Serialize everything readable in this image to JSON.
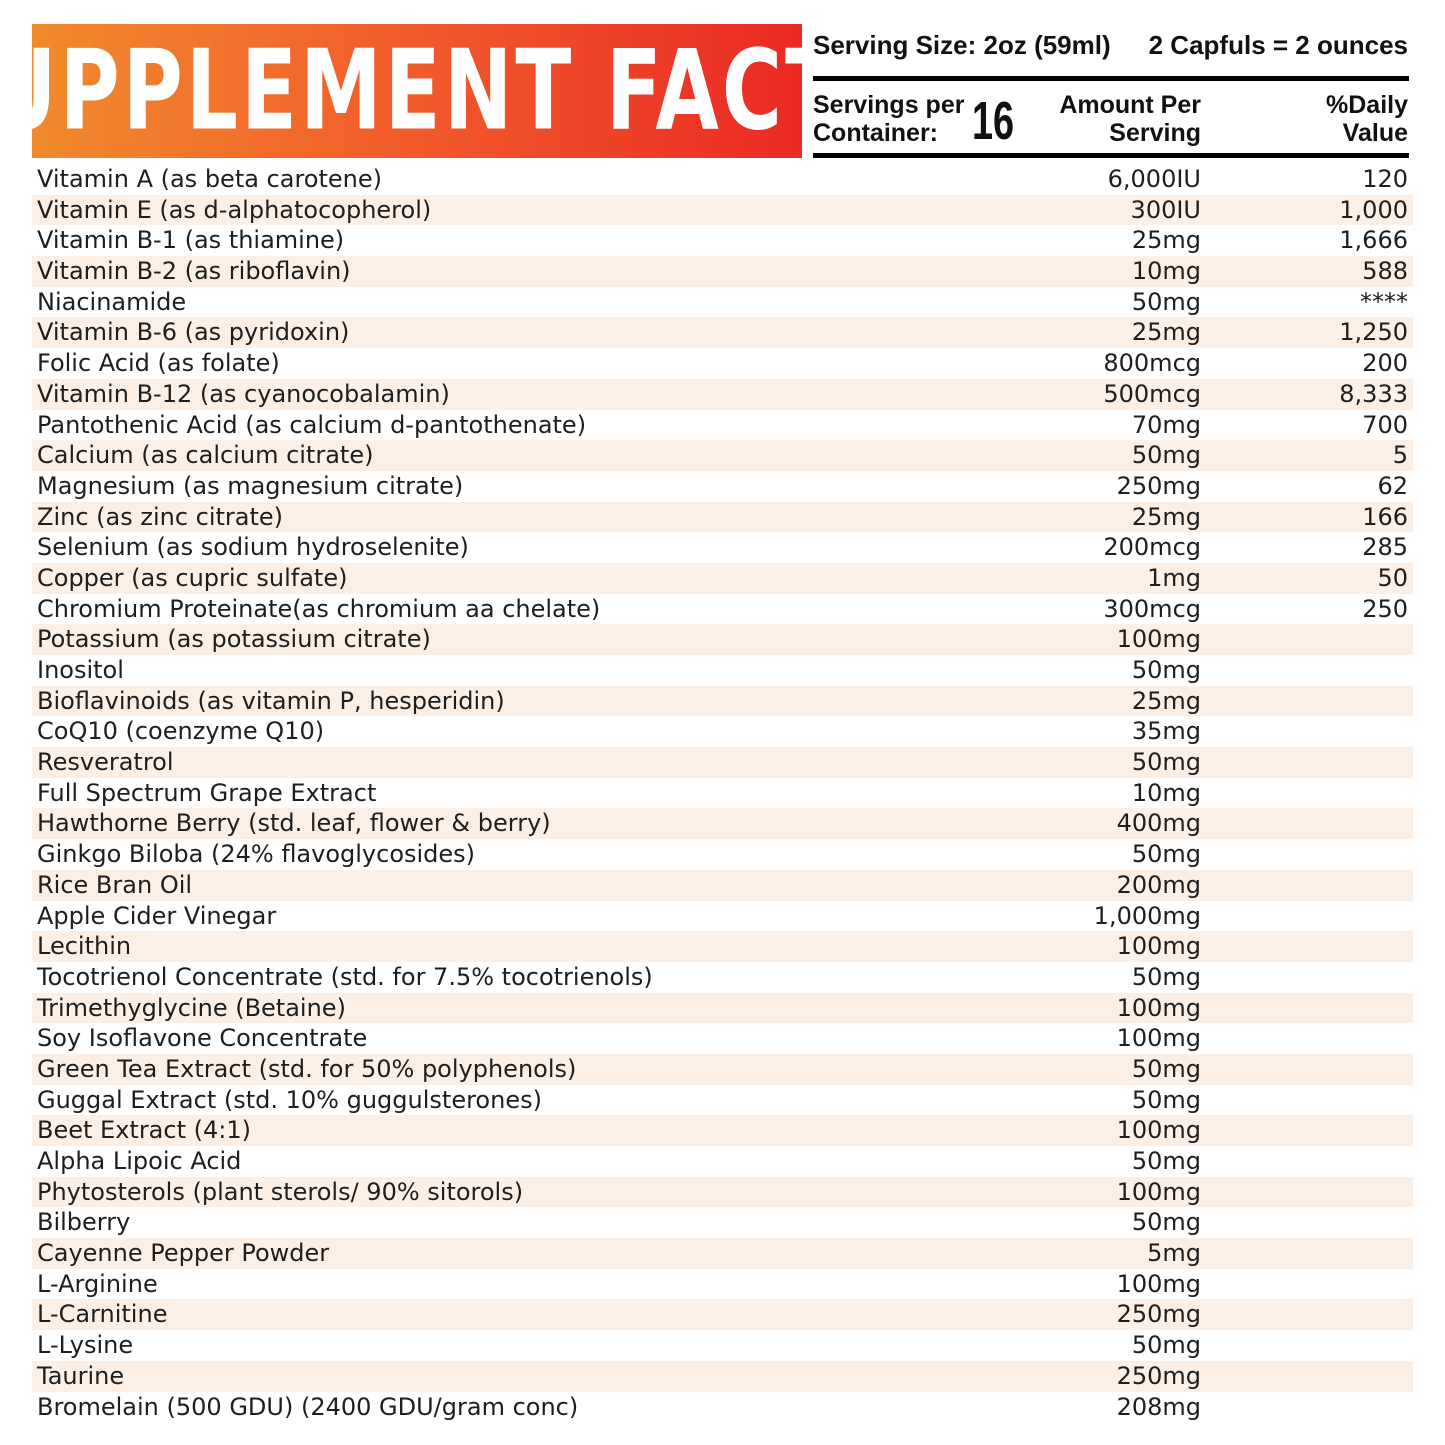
{
  "title": "SUPPLEMENT FACTS",
  "serving_size": "Serving Size: 2oz (59ml)",
  "capfuls": "2 Capfuls = 2 ounces",
  "servings_per_label_1": "Servings per",
  "servings_per_label_2": "Container:",
  "servings_per_value": "16",
  "amount_header_1": "Amount Per",
  "amount_header_2": "Serving",
  "dv_header_1": "%Daily",
  "dv_header_2": "Value",
  "colors": {
    "title_start": "#f08a2c",
    "title_end": "#ea2a24",
    "row_alt": "#fcefe5"
  },
  "rows": [
    {
      "name": "Vitamin A (as beta carotene)",
      "amount": "6,000IU",
      "dv": "120"
    },
    {
      "name": "Vitamin E (as d-alphatocopherol)",
      "amount": "300IU",
      "dv": "1,000"
    },
    {
      "name": "Vitamin B-1 (as thiamine)",
      "amount": "25mg",
      "dv": "1,666"
    },
    {
      "name": "Vitamin B-2 (as riboflavin)",
      "amount": "10mg",
      "dv": "588"
    },
    {
      "name": "Niacinamide",
      "amount": "50mg",
      "dv": "****"
    },
    {
      "name": "Vitamin B-6 (as pyridoxin)",
      "amount": "25mg",
      "dv": "1,250"
    },
    {
      "name": "Folic Acid (as folate)",
      "amount": "800mcg",
      "dv": "200"
    },
    {
      "name": "Vitamin B-12 (as cyanocobalamin)",
      "amount": "500mcg",
      "dv": "8,333"
    },
    {
      "name": "Pantothenic Acid (as calcium d-pantothenate)",
      "amount": "70mg",
      "dv": "700"
    },
    {
      "name": "Calcium (as calcium citrate)",
      "amount": "50mg",
      "dv": "5"
    },
    {
      "name": "Magnesium (as magnesium citrate)",
      "amount": "250mg",
      "dv": "62"
    },
    {
      "name": "Zinc (as zinc citrate)",
      "amount": "25mg",
      "dv": "166"
    },
    {
      "name": "Selenium (as sodium hydroselenite)",
      "amount": "200mcg",
      "dv": "285"
    },
    {
      "name": "Copper (as cupric sulfate)",
      "amount": "1mg",
      "dv": "50"
    },
    {
      "name": "Chromium Proteinate(as chromium aa chelate)",
      "amount": "300mcg",
      "dv": "250"
    },
    {
      "name": "Potassium (as potassium citrate)",
      "amount": "100mg",
      "dv": ""
    },
    {
      "name": "Inositol",
      "amount": "50mg",
      "dv": ""
    },
    {
      "name": "Bioflavinoids (as vitamin P, hesperidin)",
      "amount": "25mg",
      "dv": ""
    },
    {
      "name": "CoQ10 (coenzyme Q10)",
      "amount": "35mg",
      "dv": ""
    },
    {
      "name": "Resveratrol",
      "amount": "50mg",
      "dv": ""
    },
    {
      "name": "Full Spectrum Grape Extract",
      "amount": "10mg",
      "dv": ""
    },
    {
      "name": "Hawthorne Berry (std. leaf, flower & berry)",
      "amount": "400mg",
      "dv": ""
    },
    {
      "name": "Ginkgo Biloba (24% flavoglycosides)",
      "amount": "50mg",
      "dv": ""
    },
    {
      "name": "Rice Bran Oil",
      "amount": "200mg",
      "dv": ""
    },
    {
      "name": "Apple Cider Vinegar",
      "amount": "1,000mg",
      "dv": ""
    },
    {
      "name": "Lecithin",
      "amount": "100mg",
      "dv": ""
    },
    {
      "name": "Tocotrienol Concentrate (std. for 7.5% tocotrienols)",
      "amount": "50mg",
      "dv": ""
    },
    {
      "name": "Trimethyglycine (Betaine)",
      "amount": "100mg",
      "dv": ""
    },
    {
      "name": "Soy Isoflavone Concentrate",
      "amount": "100mg",
      "dv": ""
    },
    {
      "name": "Green Tea Extract (std. for 50% polyphenols)",
      "amount": "50mg",
      "dv": ""
    },
    {
      "name": "Guggal Extract (std. 10% guggulsterones)",
      "amount": "50mg",
      "dv": ""
    },
    {
      "name": "Beet Extract (4:1)",
      "amount": "100mg",
      "dv": ""
    },
    {
      "name": "Alpha Lipoic Acid",
      "amount": "50mg",
      "dv": ""
    },
    {
      "name": "Phytosterols (plant sterols/ 90% sitorols)",
      "amount": "100mg",
      "dv": ""
    },
    {
      "name": "Bilberry",
      "amount": "50mg",
      "dv": ""
    },
    {
      "name": "Cayenne Pepper Powder",
      "amount": "5mg",
      "dv": ""
    },
    {
      "name": "L-Arginine",
      "amount": "100mg",
      "dv": ""
    },
    {
      "name": "L-Carnitine",
      "amount": "250mg",
      "dv": ""
    },
    {
      "name": "L-Lysine",
      "amount": "50mg",
      "dv": ""
    },
    {
      "name": "Taurine",
      "amount": "250mg",
      "dv": ""
    },
    {
      "name": "Bromelain (500 GDU) (2400 GDU/gram conc)",
      "amount": "208mg",
      "dv": ""
    }
  ]
}
